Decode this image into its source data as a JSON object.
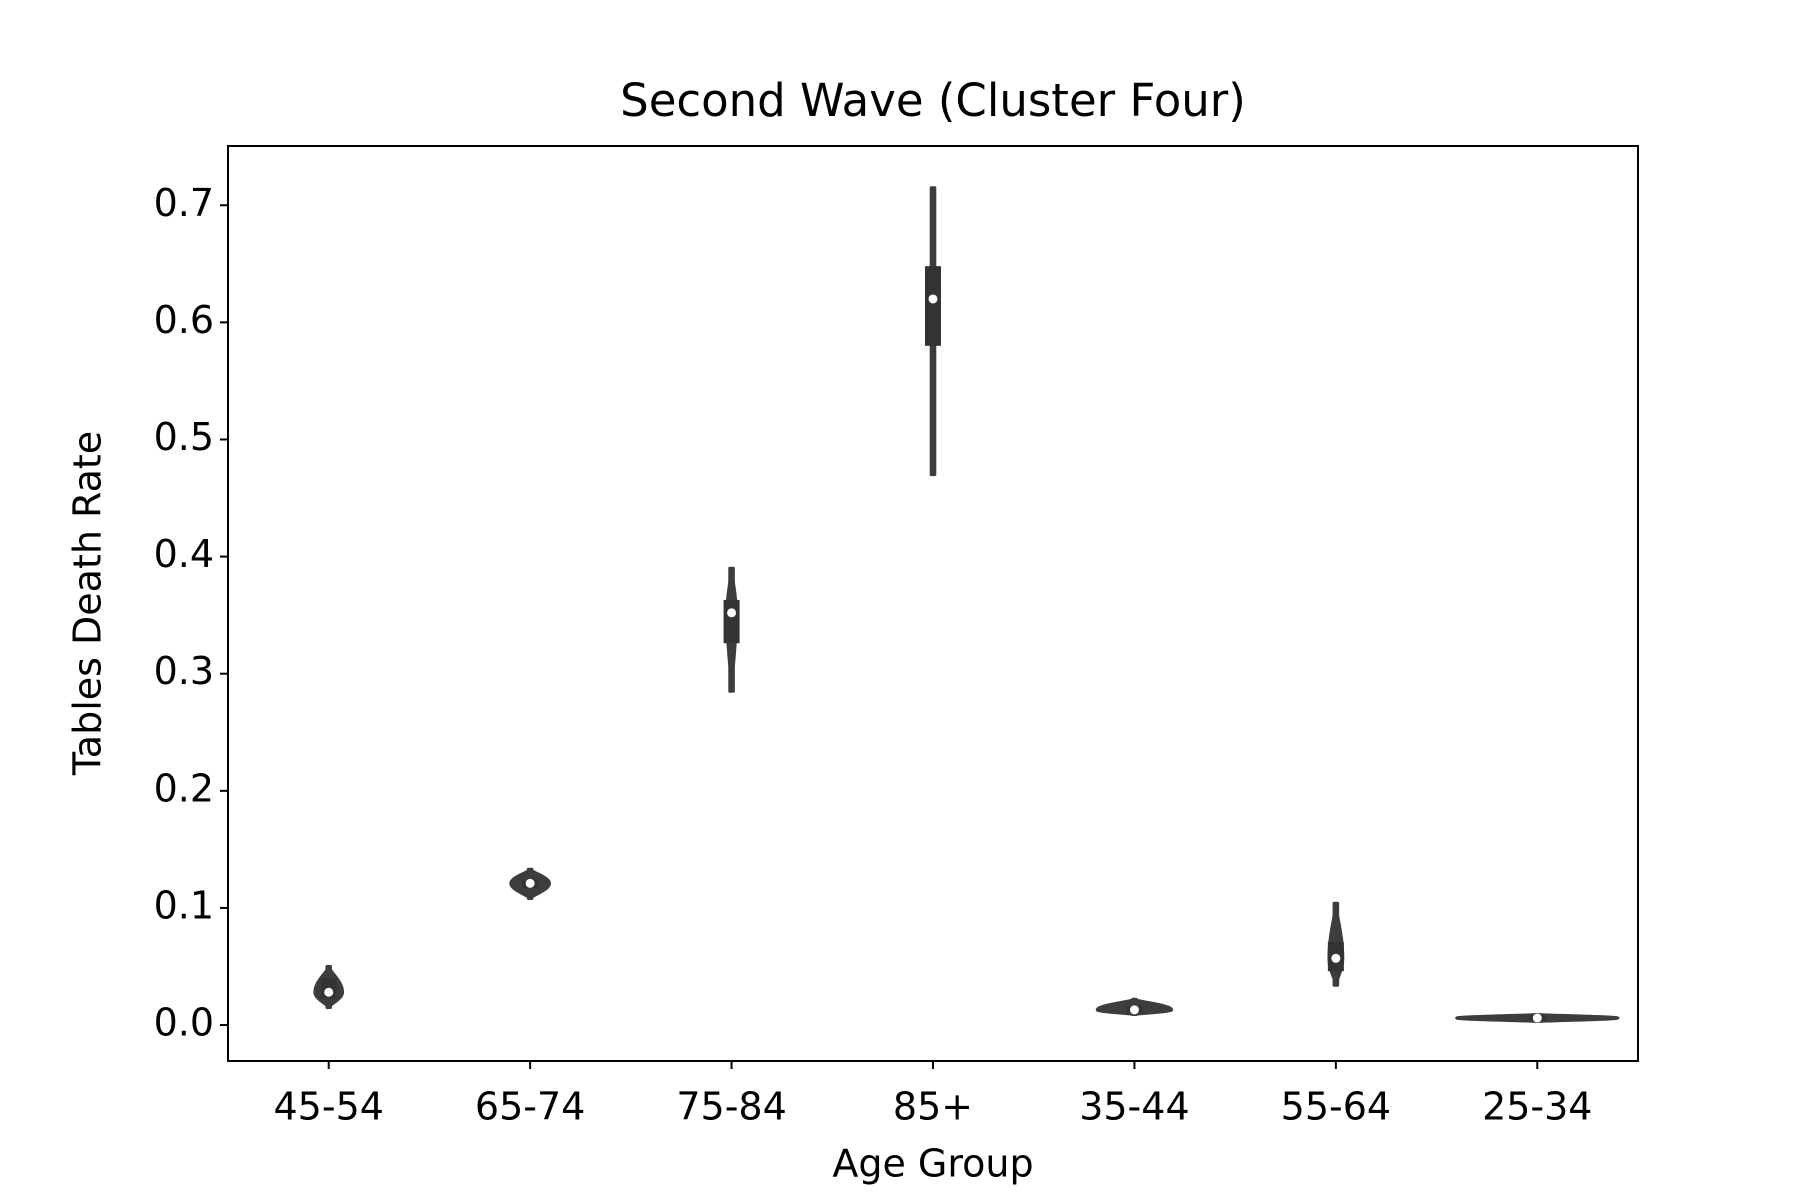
{
  "chart_data": {
    "type": "violin",
    "title": "Second Wave (Cluster Four)",
    "x_label": "Age Group",
    "y_label": "Tables Death Rate",
    "categories": [
      "45-54",
      "65-74",
      "75-84",
      "85+",
      "35-44",
      "55-64",
      "25-34"
    ],
    "min": [
      0.015,
      0.108,
      0.285,
      0.47,
      0.009,
      0.034,
      0.003
    ],
    "q1": [
      0.022,
      0.117,
      0.326,
      0.58,
      0.011,
      0.046,
      0.004
    ],
    "median": [
      0.028,
      0.121,
      0.352,
      0.62,
      0.013,
      0.057,
      0.006
    ],
    "q3": [
      0.04,
      0.124,
      0.363,
      0.648,
      0.016,
      0.071,
      0.009
    ],
    "max": [
      0.05,
      0.133,
      0.39,
      0.715,
      0.022,
      0.104,
      0.009
    ],
    "color": "#3d3d3d",
    "ylim": [
      -0.0307,
      0.7506
    ],
    "yticks": [
      {
        "value": 0,
        "label": "0.0"
      },
      0.1,
      0.2,
      0.3,
      0.4,
      0.5,
      0.6,
      0.7
    ]
  }
}
